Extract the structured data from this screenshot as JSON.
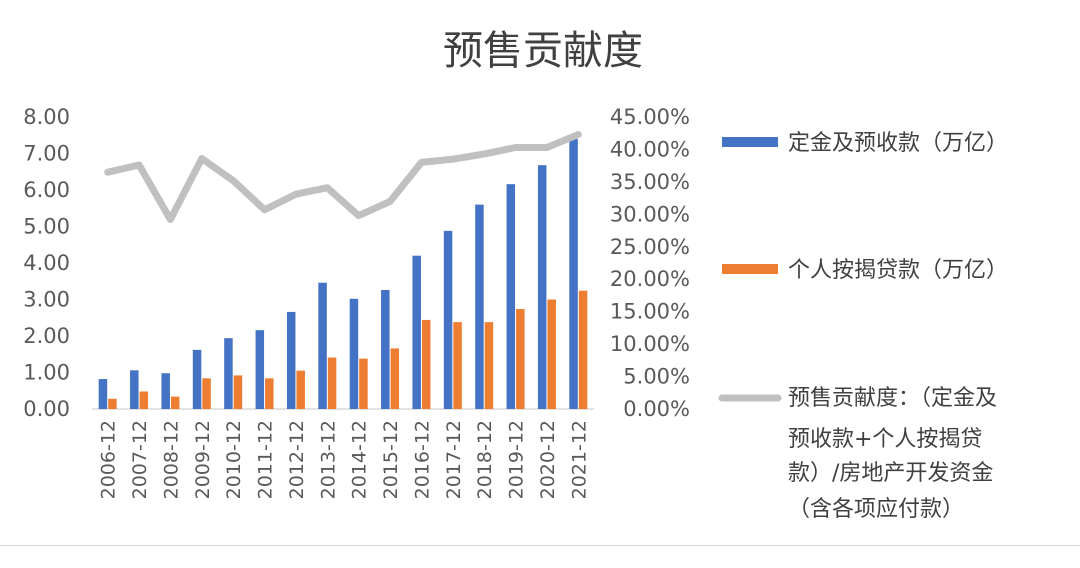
{
  "chart_data": {
    "type": "bar",
    "title": "预售贡献度",
    "categories": [
      "2006-12",
      "2007-12",
      "2008-12",
      "2009-12",
      "2010-12",
      "2011-12",
      "2012-12",
      "2013-12",
      "2014-12",
      "2015-12",
      "2016-12",
      "2017-12",
      "2018-12",
      "2019-12",
      "2020-12",
      "2021-12"
    ],
    "series": [
      {
        "name": "定金及预收款（万亿）",
        "type": "bar",
        "axis": "left",
        "color": "#4472C4",
        "values": [
          0.82,
          1.06,
          0.98,
          1.62,
          1.94,
          2.16,
          2.66,
          3.46,
          3.02,
          3.26,
          4.2,
          4.88,
          5.6,
          6.16,
          6.68,
          7.4
        ]
      },
      {
        "name": "个人按揭贷款（万亿）",
        "type": "bar",
        "axis": "left",
        "color": "#ED7D31",
        "values": [
          0.28,
          0.48,
          0.34,
          0.84,
          0.92,
          0.84,
          1.05,
          1.41,
          1.38,
          1.66,
          2.44,
          2.38,
          2.38,
          2.74,
          3.0,
          3.24
        ]
      },
      {
        "name_lines": [
          "预售贡献度：（定金及",
          "预收款+个人按揭贷",
          "款）/房地产开发资金",
          "（含各项应付款）"
        ],
        "type": "line",
        "axis": "right",
        "color": "#C0C0C0",
        "values": [
          36.5,
          37.6,
          29.2,
          38.6,
          35.2,
          30.7,
          33.1,
          34.1,
          29.8,
          32.0,
          38.0,
          38.5,
          39.3,
          40.3,
          40.3,
          42.3
        ]
      }
    ],
    "y_left": {
      "min": 0,
      "max": 8,
      "ticks": [
        "0.00",
        "1.00",
        "2.00",
        "3.00",
        "4.00",
        "5.00",
        "6.00",
        "7.00",
        "8.00"
      ]
    },
    "y_right": {
      "min": 0,
      "max": 45,
      "ticks": [
        "0.00%",
        "5.00%",
        "10.00%",
        "15.00%",
        "20.00%",
        "25.00%",
        "30.00%",
        "35.00%",
        "40.00%",
        "45.00%"
      ]
    },
    "legend_position": "right",
    "grid": false
  }
}
